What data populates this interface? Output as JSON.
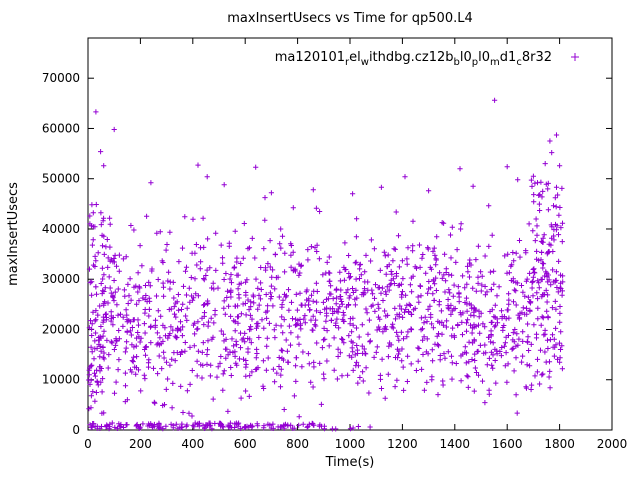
{
  "chart_data": {
    "type": "scatter",
    "title": "maxInsertUsecs vs Time for qp500.L4",
    "xlabel": "Time(s)",
    "ylabel": "maxInsertUsecs",
    "xlim": [
      0,
      2000
    ],
    "ylim": [
      0,
      78000
    ],
    "xticks": [
      0,
      200,
      400,
      600,
      800,
      1000,
      1200,
      1400,
      1600,
      1800,
      2000
    ],
    "yticks": [
      0,
      10000,
      20000,
      30000,
      40000,
      50000,
      60000,
      70000
    ],
    "grid": false,
    "legend_position": "top-right-inside",
    "marker": "plus",
    "color": "#9400d3",
    "axis_color": "#000000",
    "legend": {
      "plain": "ma120101_rel_withdbg.cz12b_bl0_pl0_md1_c8r32",
      "segments": [
        {
          "text": "ma120101"
        },
        {
          "text": "r",
          "sub": true
        },
        {
          "text": "el"
        },
        {
          "text": "w",
          "sub": true
        },
        {
          "text": "ithdbg.cz12b"
        },
        {
          "text": "b",
          "sub": true
        },
        {
          "text": "l0"
        },
        {
          "text": "p",
          "sub": true
        },
        {
          "text": "l0"
        },
        {
          "text": "m",
          "sub": true
        },
        {
          "text": "d1"
        },
        {
          "text": "c",
          "sub": true
        },
        {
          "text": "8r32"
        }
      ]
    },
    "cloud": {
      "seed": 987654,
      "main": {
        "n": 1400,
        "x": [
          5,
          1812
        ],
        "y_mean": 22500,
        "y_sd": 8500,
        "y_clip": [
          2000,
          47500
        ]
      },
      "left_band": {
        "n": 60,
        "x": [
          2,
          62
        ],
        "y": [
          2500,
          45500
        ]
      },
      "right_band": {
        "n": 90,
        "x": [
          1690,
          1812
        ],
        "y": [
          26000,
          50000
        ]
      },
      "low_band": {
        "n": 150,
        "x": [
          3,
          905
        ],
        "y": [
          250,
          1400
        ]
      },
      "low_sparse": {
        "n": 6,
        "x": [
          920,
          1350
        ],
        "y": [
          200,
          900
        ]
      }
    },
    "outliers": [
      [
        30,
        63300
      ],
      [
        48,
        55400
      ],
      [
        60,
        52600
      ],
      [
        100,
        59800
      ],
      [
        240,
        49200
      ],
      [
        420,
        52700
      ],
      [
        455,
        50400
      ],
      [
        520,
        48800
      ],
      [
        640,
        52300
      ],
      [
        700,
        47200
      ],
      [
        860,
        47800
      ],
      [
        1010,
        47000
      ],
      [
        1120,
        48300
      ],
      [
        1210,
        50400
      ],
      [
        1300,
        47600
      ],
      [
        1420,
        52000
      ],
      [
        1470,
        48500
      ],
      [
        1552,
        65600
      ],
      [
        1600,
        52400
      ],
      [
        1640,
        49800
      ],
      [
        1700,
        50500
      ],
      [
        1745,
        53000
      ],
      [
        1763,
        57500
      ],
      [
        1770,
        55200
      ],
      [
        1788,
        58700
      ],
      [
        1800,
        52600
      ]
    ]
  }
}
